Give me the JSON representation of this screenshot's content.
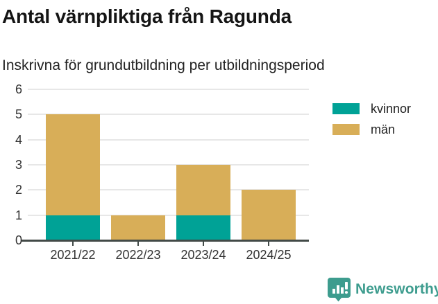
{
  "header": {
    "title": "Antal värnpliktiga från Ragunda",
    "subtitle": "Inskrivna för grundutbildning per utbildningsperiod"
  },
  "chart_data": {
    "type": "bar",
    "stacked": true,
    "title": "Antal värnpliktiga från Ragunda",
    "subtitle": "Inskrivna för grundutbildning per utbildningsperiod",
    "categories": [
      "2021/22",
      "2022/23",
      "2023/24",
      "2024/25"
    ],
    "series": [
      {
        "name": "kvinnor",
        "color": "#00A296",
        "values": [
          1,
          0,
          1,
          0
        ]
      },
      {
        "name": "män",
        "color": "#D8AE58",
        "values": [
          4,
          1,
          2,
          2
        ]
      }
    ],
    "totals": [
      5,
      1,
      3,
      2
    ],
    "xlabel": "",
    "ylabel": "",
    "ylim": [
      0,
      6
    ],
    "ytick_step": 1,
    "yticks": [
      0,
      1,
      2,
      3,
      4,
      5,
      6
    ],
    "grid": true,
    "legend_position": "top-right",
    "axis_color": "#424a47",
    "grid_color": "#e7e7e7"
  },
  "branding": {
    "logo_text": "Newsworthy",
    "logo_color": "#3d9c8e",
    "logo_icon": "newsworthy-pin-barchart-icon"
  }
}
